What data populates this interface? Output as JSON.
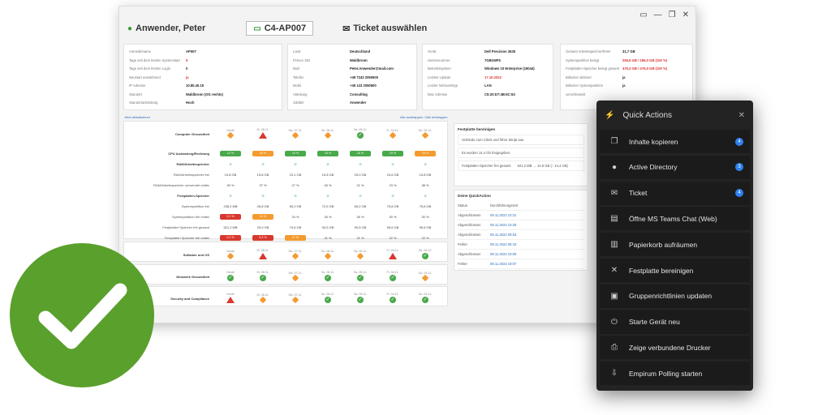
{
  "window": {
    "controls": [
      "▭",
      "—",
      "❐",
      "✕"
    ]
  },
  "header": {
    "user": "Anwender, Peter",
    "device": "C4-AP007",
    "ticket": "Ticket auswählen"
  },
  "cards": [
    {
      "rows": [
        [
          "Anmeldename",
          "AP007"
        ],
        [
          "Tage seit dem letzten Systemstart",
          "5"
        ],
        [
          "Tage seit dem letzten Login",
          "0"
        ],
        [
          "Neustart ausstehend",
          "ja"
        ],
        [
          "IP Adresse",
          "10.80.40.15"
        ],
        [
          "Standort",
          "Waldbronn (OG rechts)"
        ],
        [
          "Standortanbindung",
          "Hoch"
        ]
      ]
    },
    {
      "rows": [
        [
          "Land",
          "Deutschland"
        ],
        [
          "Firmen Sitz",
          "Waldbronn"
        ],
        [
          "Mail",
          "Peter.Anwender@mail.com"
        ],
        [
          "Telefon",
          "+49 7243 2050500"
        ],
        [
          "Mobil",
          "+49 123 2050500"
        ],
        [
          "Abteilung",
          "Consulting"
        ],
        [
          "Jobtitel",
          "Anwender"
        ]
      ]
    },
    {
      "rows": [
        [
          "Gerät",
          "Dell Precision 3530"
        ],
        [
          "Seriennummer",
          "7GB1WF5"
        ],
        [
          "Betriebssystem",
          "Windows 10 Enterprise (19044)"
        ],
        [
          "Letztes Update",
          "17.10.2022"
        ],
        [
          "Letzter Netzwerktyp",
          "LAN"
        ],
        [
          "Mac Adresse",
          "C5:20:D7:4B:6C:53"
        ]
      ]
    },
    {
      "rows": [
        [
          "Gesamt Arbeitsspeicher/RAM",
          "31,7 GB"
        ],
        [
          "Systempartition belegt",
          "255,8 GB / 256,0 GB (100 %)"
        ],
        [
          "Festplatten-Speicher belegt gesamt",
          "475,3 GB / 476,0 GB (100 %)"
        ],
        [
          "Bitlocker aktiviert",
          "ja"
        ],
        [
          "Bitlocker Systempartition verschlüsselt",
          "ja"
        ]
      ]
    }
  ],
  "grid": {
    "links": {
      "left": "Jetzt aktualisieren",
      "right": "Alle ausklappen / Alle einklappen"
    },
    "days": [
      "Heute",
      "Di. 08.11.",
      "Mo. 07.11.",
      "So. 06.11.",
      "Sa. 05.11.",
      "Fr. 04.11.",
      "Do. 03.11."
    ],
    "computer": "Computer Gesundheit",
    "cpu": {
      "label": "CPU Auslastung/Rechtung",
      "vals": [
        "12 %",
        "20 %",
        "10 %",
        "15 %",
        "18 %",
        "19 %",
        "20 %"
      ]
    },
    "ram": "RAM/Arbeitsspeicher",
    "ram1": {
      "label": "RAM/Arbeitsspeicher frei",
      "vals": [
        "15,8 GB",
        "15,8 GB",
        "23,1 GB",
        "15,8 GB",
        "25,0 GB",
        "24,6 GB",
        "15,8 GB"
      ]
    },
    "ram2": {
      "label": "RAM/Arbeitsspeicher verwendet relativ",
      "vals": [
        "30 %",
        "37 %",
        "27 %",
        "45 %",
        "21 %",
        "23 %",
        "38 %"
      ]
    },
    "disk": "Festplatten-Speicher",
    "d1": {
      "label": "Systempartition frei",
      "vals": [
        "238,2 MB",
        "28,8 GB",
        "60,2 GB",
        "72,5 GB",
        "65,2 GB",
        "75,8 GB",
        "75,6 GB"
      ]
    },
    "d2": {
      "label": "Systempartition frei relativ",
      "vals": [
        "0,1 %",
        "11 %",
        "24 %",
        "26 %",
        "26 %",
        "30 %",
        "30 %"
      ]
    },
    "d3": {
      "label": "Festplatten Speicher frei gesamt",
      "vals": [
        "521,2 MB",
        "25,0 GB",
        "79,6 GB",
        "90,5 GB",
        "90,5 GB",
        "95,6 GB",
        "95,6 GB"
      ]
    },
    "d4": {
      "label": "Festplatten Speicher frei relativ",
      "vals": [
        "0,1 %",
        "5,3 %",
        "17 %",
        "21 %",
        "21 %",
        "22 %",
        "22 %"
      ]
    },
    "software": "Software und OS",
    "netz": "Netzwerk Gesundheit",
    "sec": "Security and Compliance"
  },
  "side": {
    "title": "Festplatte bereinigen",
    "l1": "Verbinde zum Client und führe Skript aus.",
    "l2": "Es wurden 14,4 Gb freigegeben.",
    "l3k": "Festplatten-Speicher frei gesamt",
    "l3v": "521,2 MB → 14,9 GB (↑ 14,4 GB)",
    "qtitle": "Deine QuickAction",
    "h1": "Status",
    "h2": "Durchführungszeit",
    "rows": [
      [
        "Abgeschlossen",
        "09.11.2022 10:31"
      ],
      [
        "Abgeschlossen",
        "09.11.2022 10:26"
      ],
      [
        "Abgeschlossen",
        "09.11.2022 09:53"
      ],
      [
        "Fehler",
        "09.11.2022 08:43"
      ],
      [
        "Abgeschlossen",
        "08.11.2022 19:09"
      ],
      [
        "Fehler",
        "08.11.2022 19:07"
      ]
    ]
  },
  "qa": {
    "title": "Quick Actions",
    "items": [
      {
        "label": "Inhalte kopieren",
        "icon": "copy-icon",
        "badge": "4"
      },
      {
        "label": "Active Directory",
        "icon": "user-icon",
        "badge": "3"
      },
      {
        "label": "Ticket",
        "icon": "mail-icon",
        "badge": "4"
      },
      {
        "label": "Öffne MS Teams Chat (Web)",
        "icon": "chat-icon",
        "badge": ""
      },
      {
        "label": "Papierkorb aufräumen",
        "icon": "trash-icon",
        "badge": ""
      },
      {
        "label": "Festplatte bereinigen",
        "icon": "tools-icon",
        "badge": ""
      },
      {
        "label": "Gruppenrichtlinien updaten",
        "icon": "lock-icon",
        "badge": ""
      },
      {
        "label": "Starte Gerät neu",
        "icon": "power-icon",
        "badge": ""
      },
      {
        "label": "Zeige verbundene Drucker",
        "icon": "printer-icon",
        "badge": ""
      },
      {
        "label": "Empirum Polling starten",
        "icon": "download-icon",
        "badge": ""
      }
    ]
  },
  "colors": {
    "green": "#5aa02c",
    "accent": "#2f80ed",
    "dark": "#232323"
  }
}
